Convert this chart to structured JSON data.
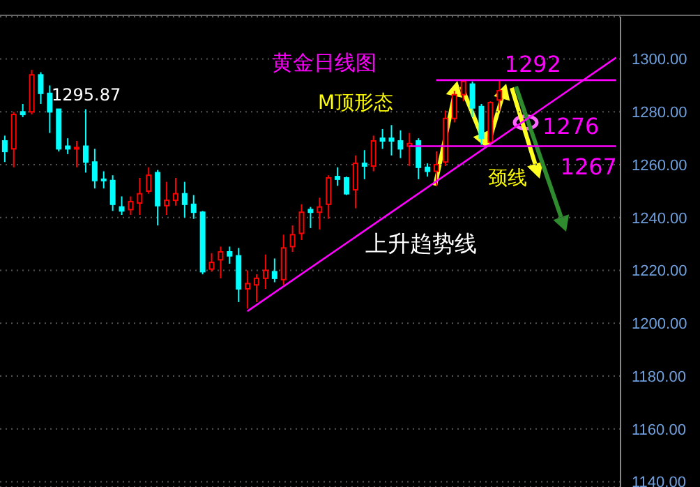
{
  "chart_data": {
    "type": "candlestick",
    "title": "黄金日线图",
    "categories": [
      null,
      null,
      null,
      null,
      null,
      null,
      null,
      null,
      null,
      null,
      null,
      null,
      null,
      null,
      null,
      null,
      null,
      null,
      null,
      null,
      null,
      null,
      null,
      null,
      null,
      null,
      null,
      null,
      null,
      null,
      null,
      null,
      null,
      null,
      null,
      null,
      null,
      null,
      null,
      null,
      null,
      null,
      null,
      null,
      null,
      null,
      null,
      null,
      null,
      null,
      null,
      null,
      null,
      null,
      null,
      null,
      null,
      null,
      null,
      null,
      null,
      null,
      null,
      null,
      null,
      null,
      null,
      null,
      null
    ],
    "ohlc": [
      [
        1269,
        1271,
        1261,
        1265
      ],
      [
        1266,
        1280,
        1259,
        1279
      ],
      [
        1280,
        1283,
        1278,
        1279
      ],
      [
        1280,
        1295.87,
        1279,
        1294
      ],
      [
        1294,
        1295,
        1283,
        1287
      ],
      [
        1287,
        1290,
        1272,
        1280
      ],
      [
        1281,
        1281,
        1265,
        1266
      ],
      [
        1267,
        1270,
        1264,
        1266
      ],
      [
        1266,
        1269,
        1259,
        1266.5
      ],
      [
        1267,
        1281,
        1257,
        1261
      ],
      [
        1261,
        1266,
        1251,
        1254
      ],
      [
        1254.5,
        1257.5,
        1251,
        1254
      ],
      [
        1254,
        1256,
        1242.5,
        1245
      ],
      [
        1244,
        1248,
        1241,
        1242.5
      ],
      [
        1243,
        1248,
        1241,
        1246
      ],
      [
        1245.5,
        1255,
        1241,
        1249
      ],
      [
        1250,
        1259,
        1249,
        1256
      ],
      [
        1257,
        1258,
        1237,
        1244.5
      ],
      [
        1244.5,
        1253.5,
        1241,
        1246.5
      ],
      [
        1246.5,
        1255,
        1244.5,
        1249
      ],
      [
        1249,
        1253.5,
        1240,
        1245
      ],
      [
        1245,
        1248.5,
        1239.5,
        1242
      ],
      [
        1242,
        1242.5,
        1218.5,
        1219.5
      ],
      [
        1220.5,
        1226.5,
        1219.5,
        1223
      ],
      [
        1224,
        1229,
        1217,
        1227
      ],
      [
        1227,
        1229,
        1222.5,
        1225.5
      ],
      [
        1225.5,
        1228.5,
        1208,
        1213
      ],
      [
        1213,
        1220,
        1205.5,
        1215
      ],
      [
        1214.5,
        1218.5,
        1208,
        1217
      ],
      [
        1217,
        1226,
        1213,
        1220
      ],
      [
        1219.5,
        1224.5,
        1215.5,
        1217
      ],
      [
        1216.5,
        1233.5,
        1214.5,
        1228.5
      ],
      [
        1229,
        1237,
        1227,
        1233.5
      ],
      [
        1234,
        1245,
        1231.5,
        1242
      ],
      [
        1243,
        1244,
        1236,
        1242
      ],
      [
        1242,
        1247.5,
        1235.5,
        1244
      ],
      [
        1245,
        1256,
        1239.5,
        1255
      ],
      [
        1255.5,
        1259,
        1252,
        1254.5
      ],
      [
        1255,
        1255.5,
        1248.5,
        1249
      ],
      [
        1250.5,
        1263.5,
        1243.5,
        1260.5
      ],
      [
        1260.5,
        1265.5,
        1254.5,
        1259.5
      ],
      [
        1259.5,
        1271,
        1257.5,
        1269
      ],
      [
        1270,
        1273.5,
        1266,
        1269
      ],
      [
        1270,
        1275,
        1263.5,
        1269
      ],
      [
        1269,
        1273,
        1262.5,
        1266
      ],
      [
        1267,
        1272,
        1259.5,
        1268
      ],
      [
        1269,
        1270,
        1254.5,
        1259
      ],
      [
        1259,
        1260.5,
        1255.5,
        1257.5
      ],
      [
        1257.5,
        1265,
        1252,
        1260
      ],
      [
        1261,
        1280.5,
        1259.5,
        1277.5
      ],
      [
        1277.5,
        1288,
        1276,
        1286.5
      ],
      [
        1286.5,
        1292,
        1284,
        1291.5
      ],
      [
        1290.5,
        1291.5,
        1278,
        1281.5
      ],
      [
        1282,
        1283,
        1267.5,
        1270
      ],
      [
        1268.5,
        1284,
        1267,
        1283.5
      ],
      [
        1284.5,
        1292,
        1280.5,
        1288
      ],
      null,
      null,
      null,
      null,
      null,
      null,
      null,
      null,
      null,
      null,
      null,
      null,
      null
    ],
    "colors": [
      "#00ffff",
      "#ff0000",
      "#00ffff",
      "#ff0000",
      "#00ffff",
      "#00ffff",
      "#00ffff",
      "#00ffff",
      "#ff0000",
      "#00ffff",
      "#00ffff",
      "#00ffff",
      "#00ffff",
      "#00ffff",
      "#ff0000",
      "#ff0000",
      "#ff0000",
      "#00ffff",
      "#ff0000",
      "#ff0000",
      "#00ffff",
      "#00ffff",
      "#00ffff",
      "#ff0000",
      "#ff0000",
      "#00ffff",
      "#00ffff",
      "#ff0000",
      "#ff0000",
      "#ff0000",
      "#00ffff",
      "#ff0000",
      "#ff0000",
      "#ff0000",
      "#00ffff",
      "#ff0000",
      "#ff0000",
      "#00ffff",
      "#00ffff",
      "#ff0000",
      "#00ffff",
      "#ff0000",
      "#00ffff",
      "#00ffff",
      "#00ffff",
      "#ff0000",
      "#00ffff",
      "#00ffff",
      "#ff0000",
      "#ff0000",
      "#ff0000",
      "#ff0000",
      "#00ffff",
      "#00ffff",
      "#ff0000",
      "#ff0000",
      null,
      null,
      null,
      null,
      null,
      null,
      null,
      null,
      null,
      null,
      null,
      null,
      null
    ],
    "series": [
      {
        "type": "line",
        "color": "#ff00ff",
        "values": [
          null,
          null,
          null,
          null,
          null,
          null,
          null,
          null,
          null,
          null,
          null,
          null,
          null,
          null,
          null,
          null,
          null,
          null,
          null,
          null,
          null,
          null,
          null,
          null,
          null,
          null,
          null,
          1204.5,
          null,
          null,
          null,
          null,
          null,
          null,
          null,
          null,
          null,
          null,
          null,
          null,
          null,
          null,
          null,
          null,
          null,
          null,
          null,
          null,
          null,
          null,
          null,
          null,
          null,
          null,
          null,
          null,
          null,
          null,
          null,
          null,
          null,
          null,
          null,
          null,
          null,
          null,
          null,
          null,
          1300.5
        ]
      },
      {
        "type": "line",
        "name": "1292",
        "color": "#ff00ff",
        "values": [
          null,
          null,
          null,
          null,
          null,
          null,
          null,
          null,
          null,
          null,
          null,
          null,
          null,
          null,
          null,
          null,
          null,
          null,
          null,
          null,
          null,
          null,
          null,
          null,
          null,
          null,
          null,
          null,
          null,
          null,
          null,
          null,
          null,
          null,
          null,
          null,
          null,
          null,
          null,
          null,
          null,
          null,
          null,
          null,
          null,
          null,
          null,
          null,
          1292,
          null,
          null,
          null,
          null,
          null,
          null,
          null,
          null,
          null,
          null,
          null,
          null,
          null,
          null,
          null,
          null,
          null,
          null,
          null,
          1292
        ]
      },
      {
        "type": "line",
        "name": "1267",
        "color": "#ff00ff",
        "values": [
          null,
          null,
          null,
          null,
          null,
          null,
          null,
          null,
          null,
          null,
          null,
          null,
          null,
          null,
          null,
          null,
          null,
          null,
          null,
          null,
          null,
          null,
          null,
          null,
          null,
          null,
          null,
          null,
          null,
          null,
          null,
          null,
          null,
          null,
          null,
          null,
          null,
          null,
          null,
          null,
          null,
          null,
          null,
          null,
          null,
          1267,
          null,
          null,
          null,
          null,
          null,
          null,
          null,
          null,
          null,
          null,
          null,
          null,
          null,
          null,
          null,
          null,
          null,
          null,
          null,
          null,
          null,
          null,
          1267
        ]
      }
    ],
    "annotations": [
      "M顶形态",
      "颈线",
      "上升趋势线",
      "1295.87",
      "1276"
    ],
    "ylim": [
      1138,
      1316
    ],
    "yticks": [
      {
        "value": 1140,
        "label": "1140.00"
      },
      {
        "value": 1160,
        "label": "1160.00"
      },
      {
        "value": 1180,
        "label": "1180.00"
      },
      {
        "value": 1200,
        "label": "1200.00"
      },
      {
        "value": 1220,
        "label": "1220.00"
      },
      {
        "value": 1240,
        "label": "1240.00"
      },
      {
        "value": 1260,
        "label": "1260.00"
      },
      {
        "value": 1280,
        "label": "1280.00"
      },
      {
        "value": 1300,
        "label": "1300.00"
      }
    ],
    "grid": "y",
    "legend": false,
    "tick_labels": "y"
  }
}
